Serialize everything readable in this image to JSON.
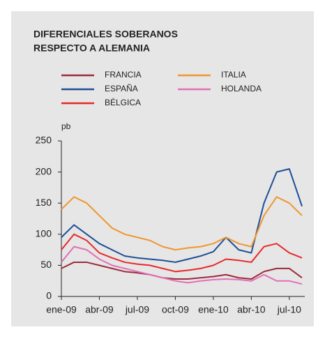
{
  "chart_data": {
    "type": "line",
    "title": [
      "DIFERENCIALES SOBERANOS",
      "RESPECTO A ALEMANIA"
    ],
    "y_label": "pb",
    "x": [
      "2009-01",
      "2009-02",
      "2009-03",
      "2009-04",
      "2009-05",
      "2009-06",
      "2009-07",
      "2009-08",
      "2009-09",
      "2009-10",
      "2009-11",
      "2009-12",
      "2010-01",
      "2010-02",
      "2010-03",
      "2010-04",
      "2010-05",
      "2010-06",
      "2010-07",
      "2010-08"
    ],
    "xlim": [
      "2009-01",
      "2010-08"
    ],
    "xticks": [
      {
        "value": "2009-01",
        "label": "ene-09"
      },
      {
        "value": "2009-04",
        "label": "abr-09"
      },
      {
        "value": "2009-07",
        "label": "jul-09"
      },
      {
        "value": "2009-10",
        "label": "oct-09"
      },
      {
        "value": "2010-01",
        "label": "ene-10"
      },
      {
        "value": "2010-04",
        "label": "abr-10"
      },
      {
        "value": "2010-07",
        "label": "jul-10"
      }
    ],
    "ylim": [
      0,
      250
    ],
    "yticks": [
      0,
      50,
      100,
      150,
      200,
      250
    ],
    "series": [
      {
        "name": "FRANCIA",
        "color": "#9b2b3a",
        "values": [
          45,
          55,
          55,
          50,
          45,
          40,
          38,
          35,
          30,
          28,
          28,
          30,
          32,
          35,
          30,
          28,
          40,
          45,
          45,
          30
        ]
      },
      {
        "name": "ESPAÑA",
        "color": "#1f4e96",
        "values": [
          95,
          115,
          100,
          85,
          75,
          65,
          62,
          60,
          58,
          55,
          60,
          65,
          72,
          95,
          75,
          70,
          150,
          200,
          205,
          145
        ]
      },
      {
        "name": "BÉLGICA",
        "color": "#e8292a",
        "values": [
          75,
          100,
          90,
          70,
          62,
          55,
          52,
          50,
          45,
          40,
          42,
          45,
          50,
          60,
          58,
          55,
          80,
          85,
          70,
          62
        ]
      },
      {
        "name": "ITALIA",
        "color": "#f0962d",
        "values": [
          140,
          160,
          150,
          130,
          110,
          100,
          95,
          90,
          80,
          75,
          78,
          80,
          85,
          95,
          85,
          80,
          130,
          160,
          150,
          130
        ]
      },
      {
        "name": "HOLANDA",
        "color": "#e36fb5",
        "values": [
          55,
          80,
          75,
          60,
          50,
          45,
          40,
          35,
          30,
          25,
          22,
          25,
          27,
          28,
          27,
          25,
          35,
          25,
          25,
          20
        ]
      }
    ]
  }
}
